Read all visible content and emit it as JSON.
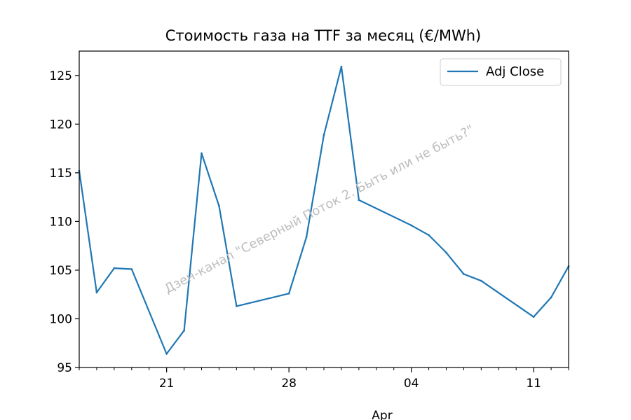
{
  "chart_data": {
    "type": "line",
    "title": "Стоимость газа на TTF за месяц (€/MWh)",
    "xlabel": "",
    "ylabel": "",
    "x_labels_sublabel": "Apr",
    "ylim": [
      95,
      127.5
    ],
    "yticks": [
      95,
      100,
      105,
      110,
      115,
      120,
      125
    ],
    "x": [
      "2022-03-16",
      "2022-03-17",
      "2022-03-18",
      "2022-03-19",
      "2022-03-21",
      "2022-03-22",
      "2022-03-23",
      "2022-03-24",
      "2022-03-25",
      "2022-03-28",
      "2022-03-29",
      "2022-03-30",
      "2022-03-31",
      "2022-04-01",
      "2022-04-04",
      "2022-04-05",
      "2022-04-06",
      "2022-04-07",
      "2022-04-08",
      "2022-04-11",
      "2022-04-12",
      "2022-04-13"
    ],
    "xtick_labels": [
      "21",
      "28",
      "04",
      "11"
    ],
    "series": [
      {
        "name": "Adj Close",
        "color": "#1f77b4",
        "values": [
          115.2,
          102.7,
          105.2,
          105.1,
          96.4,
          98.8,
          117.0,
          111.6,
          101.3,
          102.6,
          108.4,
          118.9,
          125.9,
          112.2,
          109.6,
          108.6,
          106.8,
          104.6,
          103.9,
          100.2,
          102.2,
          105.4
        ]
      }
    ],
    "legend": {
      "position": "top-right",
      "entries": [
        "Adj Close"
      ]
    },
    "grid": false
  },
  "watermark": "Дзен-канал \"Северный Поток 2. Быть или не быть?\""
}
